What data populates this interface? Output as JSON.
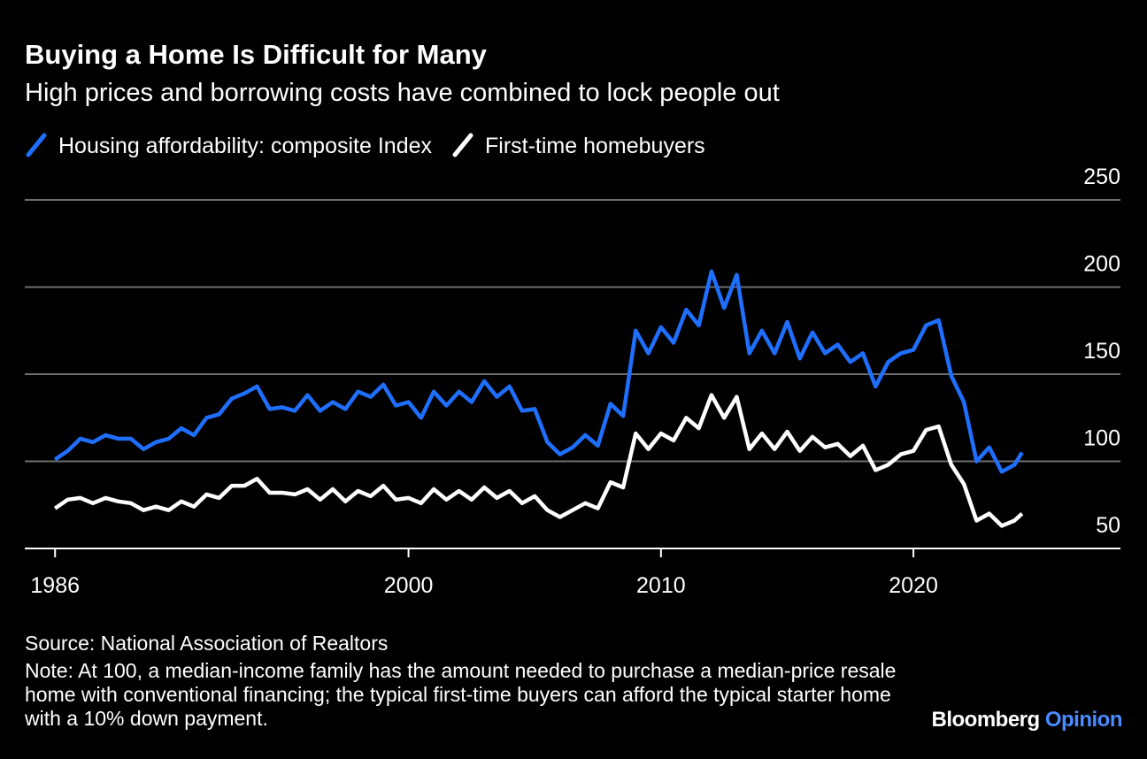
{
  "chart_data": {
    "type": "line",
    "title": "Buying a Home Is Difficult for Many",
    "subtitle": "High prices and borrowing costs have combined to lock people out",
    "x": [
      1986,
      1986.5,
      1987,
      1987.5,
      1988,
      1988.5,
      1989,
      1989.5,
      1990,
      1990.5,
      1991,
      1991.5,
      1992,
      1992.5,
      1993,
      1993.5,
      1994,
      1994.5,
      1995,
      1995.5,
      1996,
      1996.5,
      1997,
      1997.5,
      1998,
      1998.5,
      1999,
      1999.5,
      2000,
      2000.5,
      2001,
      2001.5,
      2002,
      2002.5,
      2003,
      2003.5,
      2004,
      2004.5,
      2005,
      2005.5,
      2006,
      2006.5,
      2007,
      2007.5,
      2008,
      2008.5,
      2009,
      2009.5,
      2010,
      2010.5,
      2011,
      2011.5,
      2012,
      2012.5,
      2013,
      2013.5,
      2014,
      2014.5,
      2015,
      2015.5,
      2016,
      2016.5,
      2017,
      2017.5,
      2018,
      2018.5,
      2019,
      2019.5,
      2020,
      2020.5,
      2021,
      2021.5,
      2022,
      2022.5,
      2023,
      2023.5,
      2024,
      2024.3
    ],
    "series": [
      {
        "name": "Housing affordability: composite Index",
        "color": "#1f6fff",
        "values": [
          101,
          106,
          113,
          111,
          115,
          113,
          113,
          107,
          111,
          113,
          119,
          115,
          125,
          127,
          136,
          139,
          143,
          130,
          131,
          129,
          138,
          129,
          134,
          130,
          140,
          137,
          144,
          132,
          134,
          125,
          140,
          132,
          140,
          134,
          146,
          137,
          143,
          129,
          130,
          111,
          104,
          108,
          115,
          109,
          133,
          126,
          175,
          162,
          177,
          168,
          187,
          178,
          209,
          188,
          207,
          162,
          175,
          162,
          180,
          159,
          174,
          162,
          167,
          157,
          162,
          143,
          157,
          162,
          164,
          178,
          181,
          149,
          134,
          100,
          108,
          94,
          98,
          105
        ]
      },
      {
        "name": "First-time homebuyers",
        "color": "#ffffff",
        "values": [
          73,
          78,
          79,
          76,
          79,
          77,
          76,
          72,
          74,
          72,
          77,
          74,
          81,
          79,
          86,
          86,
          90,
          82,
          82,
          81,
          84,
          78,
          84,
          77,
          83,
          80,
          86,
          78,
          79,
          76,
          84,
          78,
          83,
          78,
          85,
          79,
          83,
          76,
          80,
          72,
          68,
          72,
          76,
          73,
          88,
          85,
          116,
          107,
          116,
          112,
          125,
          119,
          138,
          125,
          137,
          107,
          116,
          107,
          117,
          106,
          114,
          108,
          110,
          103,
          109,
          95,
          98,
          104,
          106,
          118,
          120,
          98,
          87,
          66,
          70,
          63,
          66,
          70
        ]
      }
    ],
    "xlim": [
      1984.8,
      2028.2
    ],
    "xticks": [
      1986,
      2000,
      2010,
      2020
    ],
    "ylim": [
      50,
      250
    ],
    "yticks": [
      50,
      100,
      150,
      200,
      250
    ],
    "grid": true,
    "source": "Source: National Association of Realtors",
    "note": "Note: At 100, a median-income family has the amount needed to purchase a median-price resale home with conventional financing; the typical first-time buyers can afford the typical starter home with a 10% down payment.",
    "brand": "Bloomberg",
    "brand_section": "Opinion"
  }
}
